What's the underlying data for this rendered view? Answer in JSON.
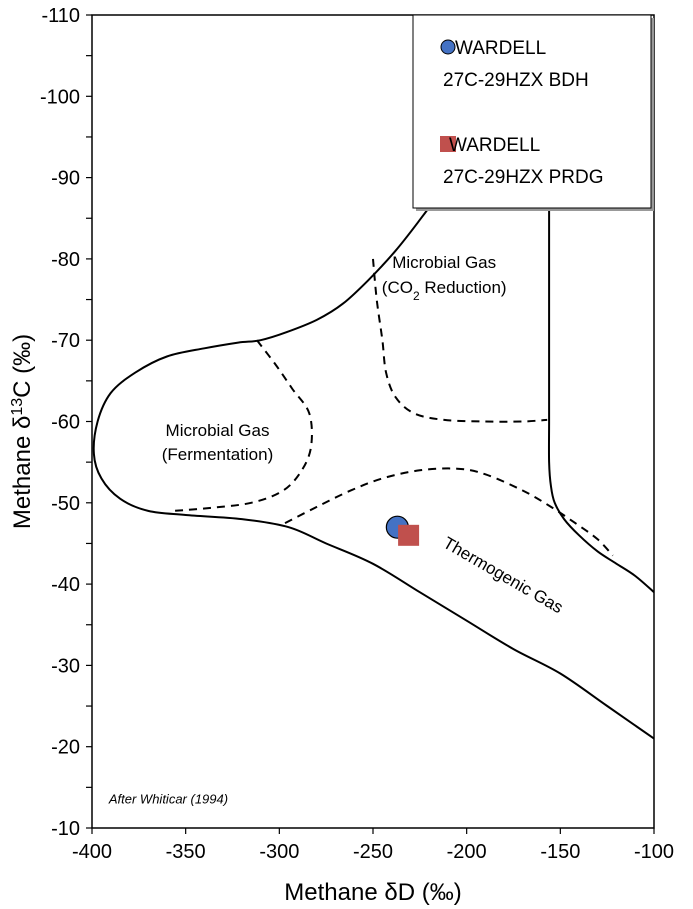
{
  "chart_data": {
    "type": "scatter",
    "xlabel": "Methane δD (‰)",
    "ylabel_prefix": "Methane δ",
    "ylabel_sup": "13",
    "ylabel_suffix": "C (‰)",
    "xlim": [
      -400,
      -100
    ],
    "ylim": [
      -10,
      -110
    ],
    "y_axis_inverted": true,
    "x_ticks": [
      -400,
      -350,
      -300,
      -250,
      -200,
      -150,
      -100
    ],
    "x_tick_labels": [
      "-400",
      "-350",
      "-300",
      "-250",
      "-200",
      "-150",
      "-100"
    ],
    "y_ticks": [
      -110,
      -100,
      -90,
      -80,
      -70,
      -60,
      -50,
      -40,
      -30,
      -20,
      -10
    ],
    "y_tick_labels": [
      "-110",
      "-100",
      "-90",
      "-80",
      "-70",
      "-60",
      "-50",
      "-40",
      "-30",
      "-20",
      "-10"
    ],
    "grid": false,
    "legend_position": "top-right",
    "series": [
      {
        "name_line1": "WARDELL",
        "name_line2": "27C-29HZX BDH",
        "marker": "circle",
        "color": "#4472c4",
        "points": [
          [
            -237,
            -47
          ]
        ]
      },
      {
        "name_line1": "WARDELL",
        "name_line2": "27C-29HZX PRDG",
        "marker": "square",
        "color": "#c0504d",
        "points": [
          [
            -231,
            -46
          ]
        ]
      }
    ],
    "regions": [
      {
        "label_line1": "Microbial Gas",
        "label_line2": "(Fermentation)",
        "x": -333,
        "y": -57
      },
      {
        "label_line1": "Microbial Gas",
        "label_line2_prefix": "(CO",
        "label_line2_sub": "2",
        "label_line2_suffix": " Reduction)",
        "x": -212,
        "y": -77.5
      },
      {
        "label": "Thermogenic Gas",
        "x": -182,
        "y": -40.5,
        "rotation": 30
      }
    ],
    "annotations": [
      {
        "text": "After Whiticar (1994)",
        "x": -391,
        "y": -13
      }
    ],
    "boundaries": {
      "solid": [
        [
          [
            -156,
            -88
          ],
          [
            -156,
            -82
          ],
          [
            -156,
            -75
          ],
          [
            -156,
            -70
          ],
          [
            -156,
            -65
          ],
          [
            -156,
            -60
          ],
          [
            -156,
            -55
          ],
          [
            -155,
            -52
          ],
          [
            -153,
            -50
          ],
          [
            -148,
            -48
          ],
          [
            -140,
            -46
          ],
          [
            -130,
            -44
          ],
          [
            -120,
            -42.5
          ],
          [
            -110,
            -41
          ],
          [
            -100,
            -39
          ]
        ],
        [
          [
            -100,
            -21
          ],
          [
            -125,
            -25
          ],
          [
            -150,
            -29
          ],
          [
            -175,
            -32
          ],
          [
            -200,
            -35.5
          ],
          [
            -225,
            -39
          ],
          [
            -250,
            -42.5
          ],
          [
            -275,
            -45
          ],
          [
            -295,
            -47
          ],
          [
            -320,
            -48
          ],
          [
            -350,
            -48.5
          ],
          [
            -370,
            -49
          ],
          [
            -385,
            -50.5
          ],
          [
            -395,
            -53
          ],
          [
            -399,
            -56
          ],
          [
            -397,
            -60
          ],
          [
            -390,
            -63.5
          ],
          [
            -377,
            -66
          ],
          [
            -360,
            -68
          ],
          [
            -340,
            -69
          ],
          [
            -322,
            -69.7
          ],
          [
            -310,
            -70
          ],
          [
            -296,
            -71
          ],
          [
            -280,
            -72.5
          ],
          [
            -266,
            -74.5
          ],
          [
            -252,
            -77.5
          ],
          [
            -238,
            -81
          ],
          [
            -226,
            -84.5
          ],
          [
            -215,
            -88
          ],
          [
            -208,
            -91
          ]
        ]
      ],
      "dashed": [
        [
          [
            -312,
            -70
          ],
          [
            -302,
            -67
          ],
          [
            -293,
            -64
          ],
          [
            -284,
            -61
          ],
          [
            -283,
            -57
          ],
          [
            -288,
            -54
          ],
          [
            -298,
            -51.5
          ],
          [
            -315,
            -50
          ],
          [
            -340,
            -49.3
          ],
          [
            -357,
            -49
          ]
        ],
        [
          [
            -250,
            -80
          ],
          [
            -248,
            -75
          ],
          [
            -245,
            -70
          ],
          [
            -243,
            -66
          ],
          [
            -238,
            -63
          ],
          [
            -228,
            -61
          ],
          [
            -212,
            -60.2
          ],
          [
            -190,
            -60
          ],
          [
            -170,
            -60
          ],
          [
            -157,
            -60.2
          ]
        ],
        [
          [
            -297,
            -47.5
          ],
          [
            -280,
            -49.5
          ],
          [
            -262,
            -51.5
          ],
          [
            -245,
            -53
          ],
          [
            -225,
            -54
          ],
          [
            -205,
            -54.2
          ],
          [
            -190,
            -53.5
          ],
          [
            -170,
            -51.5
          ],
          [
            -155,
            -49.5
          ],
          [
            -142,
            -47.5
          ],
          [
            -130,
            -45.5
          ],
          [
            -122,
            -43.5
          ]
        ]
      ]
    }
  }
}
